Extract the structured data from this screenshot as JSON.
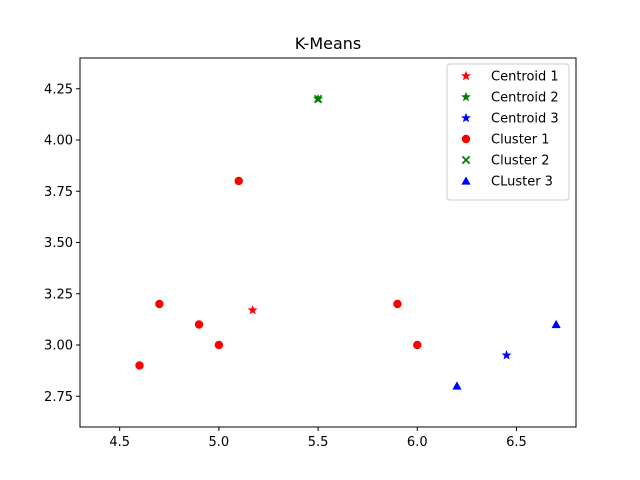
{
  "chart_data": {
    "type": "scatter",
    "title": "K-Means",
    "xlabel": "",
    "ylabel": "",
    "xlim": [
      4.3,
      6.8
    ],
    "ylim": [
      2.6,
      4.4
    ],
    "xticks": [
      4.5,
      5.0,
      5.5,
      6.0,
      6.5
    ],
    "xtick_labels": [
      "4.5",
      "5.0",
      "5.5",
      "6.0",
      "6.5"
    ],
    "yticks": [
      2.75,
      3.0,
      3.25,
      3.5,
      3.75,
      4.0,
      4.25
    ],
    "ytick_labels": [
      "2.75",
      "3.00",
      "3.25",
      "3.50",
      "3.75",
      "4.00",
      "4.25"
    ],
    "grid": false,
    "legend_position": "top-right",
    "series": [
      {
        "name": "Centroid 1",
        "marker": "star",
        "color": "#ff0000",
        "points": [
          [
            5.17,
            3.17
          ]
        ]
      },
      {
        "name": "Centroid 2",
        "marker": "star",
        "color": "#008000",
        "points": [
          [
            5.5,
            4.2
          ]
        ]
      },
      {
        "name": "Centroid 3",
        "marker": "star",
        "color": "#0000ff",
        "points": [
          [
            6.45,
            2.95
          ]
        ]
      },
      {
        "name": "Cluster 1",
        "marker": "circle",
        "color": "#ff0000",
        "points": [
          [
            4.6,
            2.9
          ],
          [
            4.7,
            3.2
          ],
          [
            4.9,
            3.1
          ],
          [
            5.0,
            3.0
          ],
          [
            5.1,
            3.8
          ],
          [
            5.9,
            3.2
          ],
          [
            6.0,
            3.0
          ]
        ]
      },
      {
        "name": "Cluster 2",
        "marker": "x",
        "color": "#008000",
        "points": [
          [
            5.5,
            4.2
          ]
        ]
      },
      {
        "name": "CLuster 3",
        "marker": "triangle",
        "color": "#0000ff",
        "points": [
          [
            6.2,
            2.8
          ],
          [
            6.7,
            3.1
          ]
        ]
      }
    ]
  }
}
